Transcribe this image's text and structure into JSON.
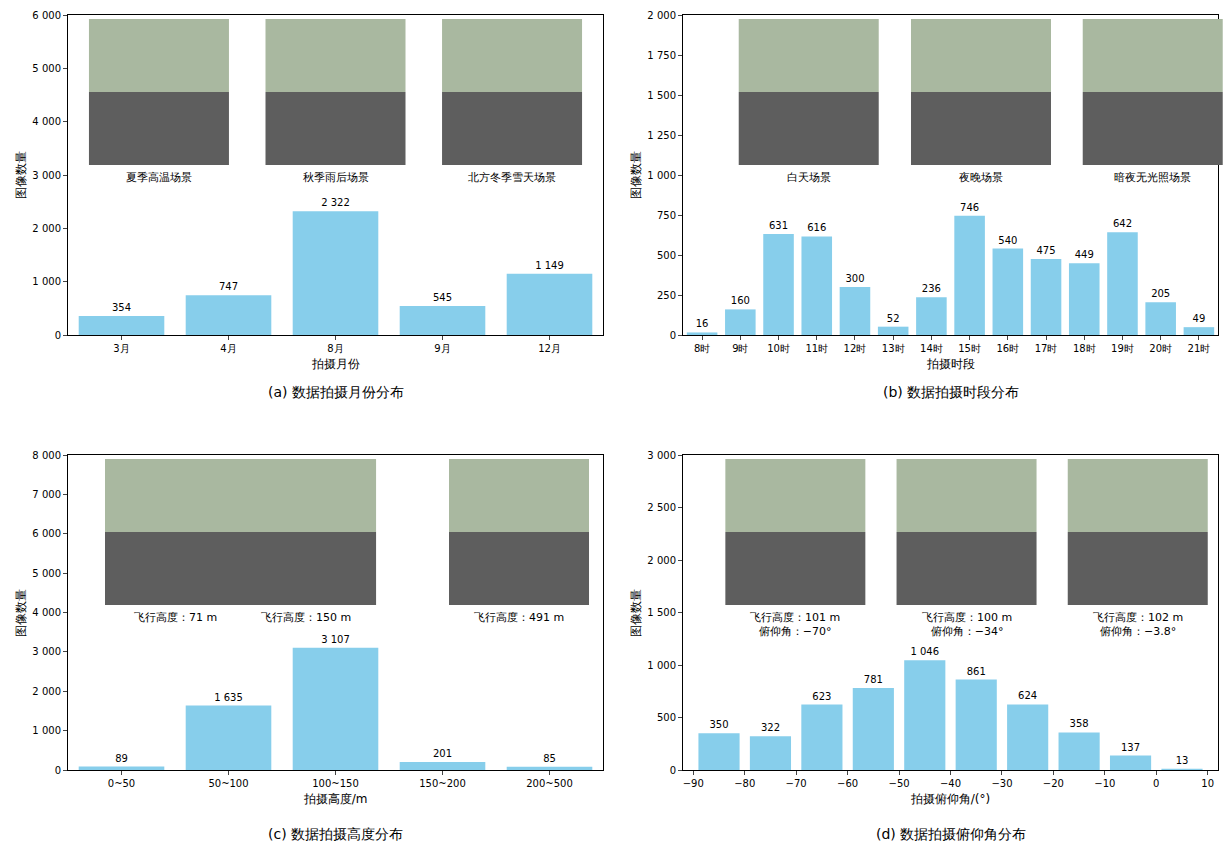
{
  "chart_data": [
    {
      "type": "bar",
      "title": "(a) 数据拍摄月份分布",
      "x_label": "拍摄月份",
      "y_label": "图像数量",
      "categories": [
        "3月",
        "4月",
        "8月",
        "9月",
        "12月"
      ],
      "values": [
        354,
        747,
        2322,
        545,
        1149
      ],
      "value_labels": [
        "354",
        "747",
        "2 322",
        "545",
        "1 149"
      ],
      "color": "#87ceeb",
      "data_labels": true,
      "grid": false,
      "ylim": [
        0,
        6000
      ],
      "yticks": [
        0,
        {
          "value": 1000,
          "label": "1 000"
        },
        {
          "value": 2000,
          "label": "2 000"
        },
        {
          "value": 3000,
          "label": "3 000"
        },
        {
          "value": 4000,
          "label": "4 000"
        },
        {
          "value": 5000,
          "label": "5 000"
        },
        {
          "value": 6000,
          "label": "6 000"
        }
      ],
      "image_captions": [
        [
          "夏季高温场景"
        ],
        [
          "秋季雨后场景"
        ],
        [
          "北方冬季雪天场景"
        ]
      ]
    },
    {
      "type": "bar",
      "title": "(b) 数据拍摄时段分布",
      "x_label": "拍摄时段",
      "y_label": "图像数量",
      "categories": [
        "8时",
        "9时",
        "10时",
        "11时",
        "12时",
        "13时",
        "14时",
        "15时",
        "16时",
        "17时",
        "18时",
        "19时",
        "20时",
        "21时"
      ],
      "values": [
        16,
        160,
        631,
        616,
        300,
        52,
        236,
        746,
        540,
        475,
        449,
        642,
        205,
        49
      ],
      "color": "#87ceeb",
      "data_labels": true,
      "grid": false,
      "ylim": [
        0,
        2000
      ],
      "yticks": [
        0,
        250,
        500,
        750,
        {
          "value": 1000,
          "label": "1 000"
        },
        {
          "value": 1250,
          "label": "1 250"
        },
        {
          "value": 1500,
          "label": "1 500"
        },
        {
          "value": 1750,
          "label": "1 750"
        },
        {
          "value": 2000,
          "label": "2 000"
        }
      ],
      "image_captions": [
        [
          "白天场景"
        ],
        [
          "夜晚场景"
        ],
        [
          "暗夜无光照场景"
        ]
      ]
    },
    {
      "type": "bar",
      "title": "(c) 数据拍摄高度分布",
      "x_label": "拍摄高度/m",
      "y_label": "图像数量",
      "categories": [
        "0~50",
        "50~100",
        "100~150",
        "150~200",
        "200~500"
      ],
      "values": [
        89,
        1635,
        3107,
        201,
        85
      ],
      "value_labels": [
        "89",
        "1 635",
        "3 107",
        "201",
        "85"
      ],
      "color": "#87ceeb",
      "data_labels": true,
      "grid": false,
      "ylim": [
        0,
        8000
      ],
      "yticks": [
        0,
        {
          "value": 1000,
          "label": "1 000"
        },
        {
          "value": 2000,
          "label": "2 000"
        },
        {
          "value": 3000,
          "label": "3 000"
        },
        {
          "value": 4000,
          "label": "4 000"
        },
        {
          "value": 5000,
          "label": "5 000"
        },
        {
          "value": 6000,
          "label": "6 000"
        },
        {
          "value": 7000,
          "label": "7 000"
        },
        {
          "value": 8000,
          "label": "8 000"
        }
      ],
      "image_captions": [
        [
          "飞行高度：71 m"
        ],
        [
          "飞行高度：150 m"
        ],
        [
          "飞行高度：491 m"
        ]
      ]
    },
    {
      "type": "histogram",
      "title": "(d) 数据拍摄俯仰角分布",
      "x_label": "拍摄俯仰角/(°)",
      "y_label": "图像数量",
      "bins": [
        -90,
        -80,
        -70,
        -60,
        -50,
        -40,
        -30,
        -20,
        -10,
        0,
        10
      ],
      "values": [
        350,
        322,
        623,
        781,
        1046,
        861,
        624,
        358,
        137,
        13
      ],
      "value_labels": [
        "350",
        "322",
        "623",
        "781",
        "1 046",
        "861",
        "624",
        "358",
        "137",
        "13"
      ],
      "color": "#87ceeb",
      "data_labels": true,
      "grid": false,
      "xlim": [
        -92,
        12
      ],
      "xticks": [
        {
          "value": -90,
          "label": "−90"
        },
        {
          "value": -80,
          "label": "−80"
        },
        {
          "value": -70,
          "label": "−70"
        },
        {
          "value": -60,
          "label": "−60"
        },
        {
          "value": -50,
          "label": "−50"
        },
        {
          "value": -40,
          "label": "−40"
        },
        {
          "value": -30,
          "label": "−30"
        },
        {
          "value": -20,
          "label": "−20"
        },
        {
          "value": -10,
          "label": "−10"
        },
        0,
        10
      ],
      "ylim": [
        0,
        3000
      ],
      "yticks": [
        0,
        500,
        {
          "value": 1000,
          "label": "1 000"
        },
        {
          "value": 1500,
          "label": "1 500"
        },
        {
          "value": 2000,
          "label": "2 000"
        },
        {
          "value": 2500,
          "label": "2 500"
        },
        {
          "value": 3000,
          "label": "3 000"
        }
      ],
      "image_captions": [
        [
          "飞行高度：101 m",
          "俯仰角：−70°"
        ],
        [
          "飞行高度：100 m",
          "俯仰角：−34°"
        ],
        [
          "飞行高度：102 m",
          "俯仰角：−3.8°"
        ]
      ]
    }
  ]
}
